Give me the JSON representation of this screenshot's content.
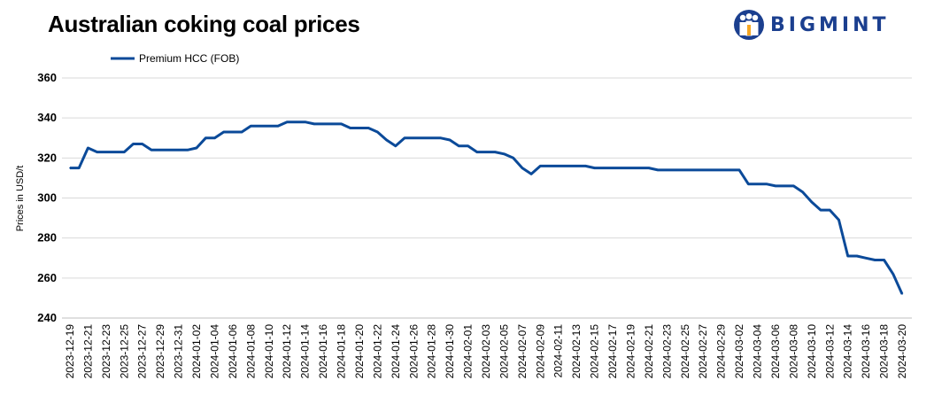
{
  "title": "Australian coking coal prices",
  "brand": {
    "name": "BIGMINT",
    "color": "#1b3f8f"
  },
  "chart_data": {
    "type": "line",
    "title": "Australian coking coal prices",
    "xlabel": "",
    "ylabel": "Prices in USD/t",
    "ylim": [
      240,
      360
    ],
    "yticks": [
      240,
      260,
      280,
      300,
      320,
      340,
      360
    ],
    "grid": true,
    "legend_position": "top-left",
    "x_tick_labels": [
      "2023-12-19",
      "2023-12-21",
      "2023-12-23",
      "2023-12-25",
      "2023-12-27",
      "2023-12-29",
      "2023-12-31",
      "2024-01-02",
      "2024-01-04",
      "2024-01-06",
      "2024-01-08",
      "2024-01-10",
      "2024-01-12",
      "2024-01-14",
      "2024-01-16",
      "2024-01-18",
      "2024-01-20",
      "2024-01-22",
      "2024-01-24",
      "2024-01-26",
      "2024-01-28",
      "2024-01-30",
      "2024-02-01",
      "2024-02-03",
      "2024-02-05",
      "2024-02-07",
      "2024-02-09",
      "2024-02-11",
      "2024-02-13",
      "2024-02-15",
      "2024-02-17",
      "2024-02-19",
      "2024-02-21",
      "2024-02-23",
      "2024-02-25",
      "2024-02-27",
      "2024-02-29",
      "2024-03-02",
      "2024-03-04",
      "2024-03-06",
      "2024-03-08",
      "2024-03-10",
      "2024-03-12",
      "2024-03-14",
      "2024-03-16",
      "2024-03-18",
      "2024-03-20"
    ],
    "series": [
      {
        "name": "Premium HCC (FOB)",
        "color": "#0b4a99",
        "points": [
          [
            "2023-12-19",
            315
          ],
          [
            "2023-12-20",
            315
          ],
          [
            "2023-12-21",
            325
          ],
          [
            "2023-12-22",
            323
          ],
          [
            "2023-12-23",
            323
          ],
          [
            "2023-12-24",
            323
          ],
          [
            "2023-12-25",
            323
          ],
          [
            "2023-12-26",
            327
          ],
          [
            "2023-12-27",
            327
          ],
          [
            "2023-12-28",
            324
          ],
          [
            "2023-12-29",
            324
          ],
          [
            "2023-12-30",
            324
          ],
          [
            "2023-12-31",
            324
          ],
          [
            "2024-01-01",
            324
          ],
          [
            "2024-01-02",
            325
          ],
          [
            "2024-01-03",
            330
          ],
          [
            "2024-01-04",
            330
          ],
          [
            "2024-01-05",
            333
          ],
          [
            "2024-01-06",
            333
          ],
          [
            "2024-01-07",
            333
          ],
          [
            "2024-01-08",
            336
          ],
          [
            "2024-01-09",
            336
          ],
          [
            "2024-01-10",
            336
          ],
          [
            "2024-01-11",
            336
          ],
          [
            "2024-01-12",
            338
          ],
          [
            "2024-01-13",
            338
          ],
          [
            "2024-01-14",
            338
          ],
          [
            "2024-01-15",
            337
          ],
          [
            "2024-01-16",
            337
          ],
          [
            "2024-01-17",
            337
          ],
          [
            "2024-01-18",
            337
          ],
          [
            "2024-01-19",
            335
          ],
          [
            "2024-01-20",
            335
          ],
          [
            "2024-01-21",
            335
          ],
          [
            "2024-01-22",
            333
          ],
          [
            "2024-01-23",
            329
          ],
          [
            "2024-01-24",
            326
          ],
          [
            "2024-01-25",
            330
          ],
          [
            "2024-01-26",
            330
          ],
          [
            "2024-01-27",
            330
          ],
          [
            "2024-01-28",
            330
          ],
          [
            "2024-01-29",
            330
          ],
          [
            "2024-01-30",
            329
          ],
          [
            "2024-01-31",
            326
          ],
          [
            "2024-02-01",
            326
          ],
          [
            "2024-02-02",
            323
          ],
          [
            "2024-02-03",
            323
          ],
          [
            "2024-02-04",
            323
          ],
          [
            "2024-02-05",
            322
          ],
          [
            "2024-02-06",
            320
          ],
          [
            "2024-02-07",
            315
          ],
          [
            "2024-02-08",
            312
          ],
          [
            "2024-02-09",
            316
          ],
          [
            "2024-02-10",
            316
          ],
          [
            "2024-02-11",
            316
          ],
          [
            "2024-02-12",
            316
          ],
          [
            "2024-02-13",
            316
          ],
          [
            "2024-02-14",
            316
          ],
          [
            "2024-02-15",
            315
          ],
          [
            "2024-02-16",
            315
          ],
          [
            "2024-02-17",
            315
          ],
          [
            "2024-02-18",
            315
          ],
          [
            "2024-02-19",
            315
          ],
          [
            "2024-02-20",
            315
          ],
          [
            "2024-02-21",
            315
          ],
          [
            "2024-02-22",
            314
          ],
          [
            "2024-02-23",
            314
          ],
          [
            "2024-02-24",
            314
          ],
          [
            "2024-02-25",
            314
          ],
          [
            "2024-02-26",
            314
          ],
          [
            "2024-02-27",
            314
          ],
          [
            "2024-02-28",
            314
          ],
          [
            "2024-02-29",
            314
          ],
          [
            "2024-03-01",
            314
          ],
          [
            "2024-03-02",
            314
          ],
          [
            "2024-03-03",
            307
          ],
          [
            "2024-03-04",
            307
          ],
          [
            "2024-03-05",
            307
          ],
          [
            "2024-03-06",
            306
          ],
          [
            "2024-03-07",
            306
          ],
          [
            "2024-03-08",
            306
          ],
          [
            "2024-03-09",
            303
          ],
          [
            "2024-03-10",
            298
          ],
          [
            "2024-03-11",
            294
          ],
          [
            "2024-03-12",
            294
          ],
          [
            "2024-03-13",
            289
          ],
          [
            "2024-03-14",
            271
          ],
          [
            "2024-03-15",
            271
          ],
          [
            "2024-03-16",
            270
          ],
          [
            "2024-03-17",
            269
          ],
          [
            "2024-03-18",
            269
          ],
          [
            "2024-03-19",
            262
          ],
          [
            "2024-03-20",
            252
          ]
        ]
      }
    ]
  }
}
